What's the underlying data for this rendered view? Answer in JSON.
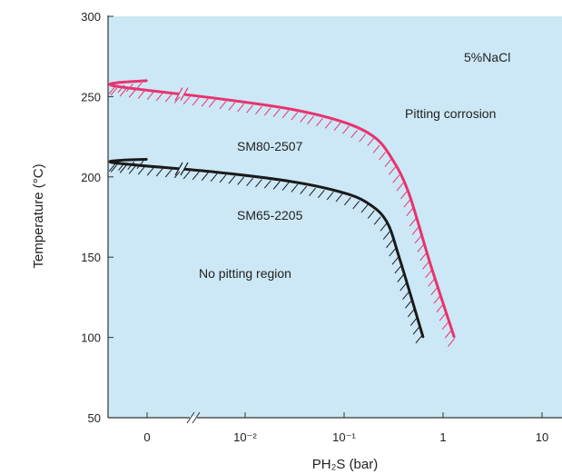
{
  "chart_data": {
    "type": "line",
    "title": "",
    "xlabel": "PH₂S (bar)",
    "ylabel": "Temperature (°C)",
    "x_scale": "log (broken axis: 0, then 10^-2 to 10)",
    "ylim": [
      50,
      300
    ],
    "yticks": [
      300,
      250,
      200,
      150,
      100,
      50
    ],
    "xticks": [
      {
        "value": 0,
        "label": "0"
      },
      {
        "value": 0.01,
        "label": "10⁻²"
      },
      {
        "value": 0.1,
        "label": "10⁻¹"
      },
      {
        "value": 1,
        "label": "1"
      },
      {
        "value": 10,
        "label": "10"
      }
    ],
    "grid": false,
    "legend": "none",
    "background_color": "#cce8f6",
    "series": [
      {
        "name": "SM80-2507",
        "color": "#e8336e",
        "points": [
          {
            "x": 0,
            "y": 260
          },
          {
            "x": 0.00045,
            "y": 257
          },
          {
            "x": 0.005,
            "y": 249
          },
          {
            "x": 0.03,
            "y": 242
          },
          {
            "x": 0.1,
            "y": 234
          },
          {
            "x": 0.2,
            "y": 225
          },
          {
            "x": 0.3,
            "y": 212
          },
          {
            "x": 0.45,
            "y": 190
          },
          {
            "x": 0.75,
            "y": 145
          },
          {
            "x": 1.3,
            "y": 100
          }
        ]
      },
      {
        "name": "SM65-2205",
        "color": "#1a1a1a",
        "points": [
          {
            "x": 0,
            "y": 211
          },
          {
            "x": 0.00045,
            "y": 209
          },
          {
            "x": 0.005,
            "y": 203
          },
          {
            "x": 0.03,
            "y": 197
          },
          {
            "x": 0.1,
            "y": 190
          },
          {
            "x": 0.18,
            "y": 183
          },
          {
            "x": 0.27,
            "y": 172
          },
          {
            "x": 0.36,
            "y": 150
          },
          {
            "x": 0.63,
            "y": 100
          }
        ]
      }
    ],
    "annotations": [
      "5%NaCl",
      "Pitting corrosion",
      "SM80-2507",
      "SM65-2205",
      "No pitting region"
    ]
  }
}
